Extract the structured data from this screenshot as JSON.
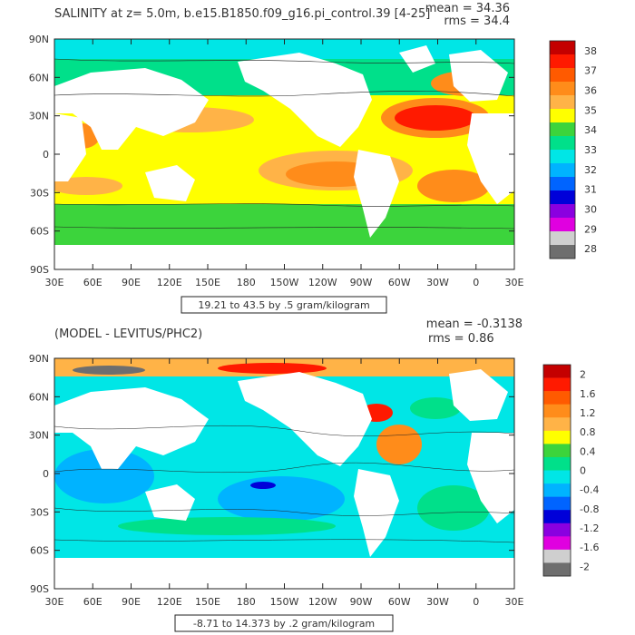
{
  "panels": [
    {
      "title": "SALINITY at z=    5.0m, b.e15.B1850.f09_g16.pi_control.39 [4-25]",
      "stats": [
        "mean = 34.36",
        "rms = 34.4"
      ],
      "note": "19.21 to 43.5 by .5 gram/kilogram",
      "y_ticks": [
        "90N",
        "60N",
        "30N",
        "0",
        "30S",
        "60S",
        "90S"
      ],
      "x_ticks": [
        "30E",
        "60E",
        "90E",
        "120E",
        "150E",
        "180",
        "150W",
        "120W",
        "90W",
        "60W",
        "30W",
        "0",
        "30E"
      ],
      "colorbar": {
        "labels": [
          "38",
          "37",
          "36",
          "35",
          "34",
          "33",
          "32",
          "31",
          "30",
          "29",
          "28"
        ],
        "colors": [
          "#c40000",
          "#ff1a00",
          "#ff5a00",
          "#ff8c1a",
          "#ffb347",
          "#ffff00",
          "#3cd43c",
          "#00e08a",
          "#00e6e6",
          "#00b3ff",
          "#0064ff",
          "#0000d9",
          "#8a00e0",
          "#e000e0",
          "#cfcfcf",
          "#6e6e6e"
        ]
      },
      "field": "salinity",
      "colors": {
        "ocean": "#ffff00",
        "land": "#ffffff"
      }
    },
    {
      "title": "(MODEL - LEVITUS/PHC2)",
      "stats": [
        "mean = -0.3138",
        "rms = 0.86"
      ],
      "note": "-8.71 to 14.373 by .2 gram/kilogram",
      "y_ticks": [
        "90N",
        "60N",
        "30N",
        "0",
        "30S",
        "60S",
        "90S"
      ],
      "x_ticks": [
        "30E",
        "60E",
        "90E",
        "120E",
        "150E",
        "180",
        "150W",
        "120W",
        "90W",
        "60W",
        "30W",
        "0",
        "30E"
      ],
      "colorbar": {
        "labels": [
          "2",
          "1.6",
          "1.2",
          "0.8",
          "0.4",
          "0",
          "-0.4",
          "-0.8",
          "-1.2",
          "-1.6",
          "-2"
        ],
        "colors": [
          "#c40000",
          "#ff1a00",
          "#ff5a00",
          "#ff8c1a",
          "#ffb347",
          "#ffff00",
          "#3cd43c",
          "#00e08a",
          "#00e6e6",
          "#00b3ff",
          "#0064ff",
          "#0000d9",
          "#8a00e0",
          "#e000e0",
          "#cfcfcf",
          "#6e6e6e"
        ]
      },
      "field": "difference",
      "colors": {
        "ocean": "#00e6e6",
        "land": "#ffffff"
      }
    }
  ]
}
